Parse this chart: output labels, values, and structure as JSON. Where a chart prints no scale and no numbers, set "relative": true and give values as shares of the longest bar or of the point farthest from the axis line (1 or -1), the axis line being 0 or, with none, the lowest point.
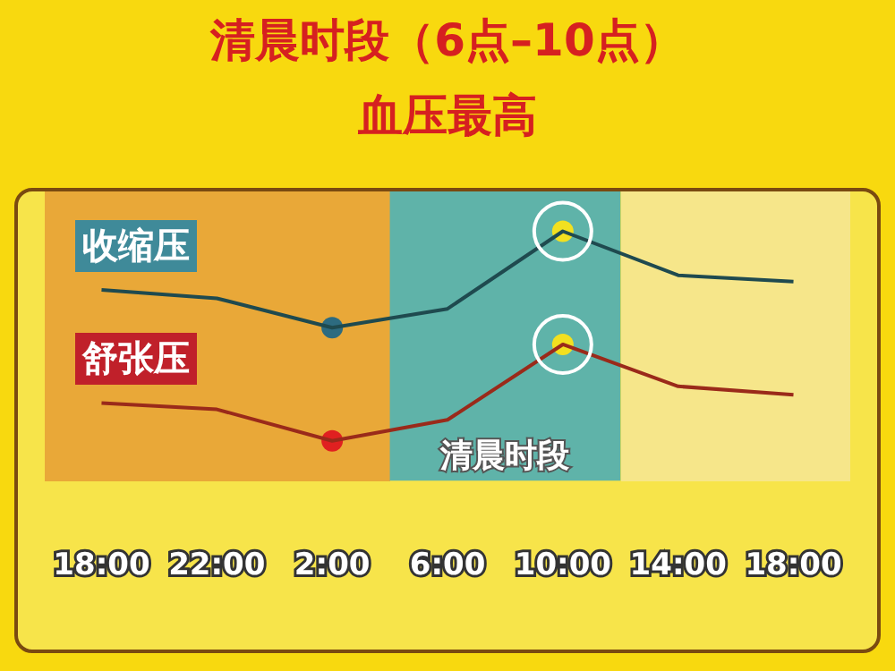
{
  "chart_data": {
    "type": "line",
    "title": "清晨时段（6点–10点）",
    "subtitle": "血压最高",
    "relative": true,
    "categories": [
      "18:00",
      "22:00",
      "2:00",
      "6:00",
      "10:00",
      "14:00",
      "18:00"
    ],
    "series": [
      {
        "name": "收缩压",
        "color": "#1f4a4f",
        "values": [
          0.72,
          0.68,
          0.54,
          0.63,
          1,
          0.79,
          0.76
        ]
      },
      {
        "name": "舒张压",
        "color": "#9a2a1a",
        "values": [
          0.18,
          0.15,
          0,
          0.1,
          0.46,
          0.26,
          0.22
        ]
      }
    ],
    "bands": [
      {
        "axis": "x",
        "from": "6:00",
        "to": "10:00",
        "label": "清晨时段",
        "color": "#5fb3a9"
      }
    ],
    "grid": false,
    "legend": false
  }
}
